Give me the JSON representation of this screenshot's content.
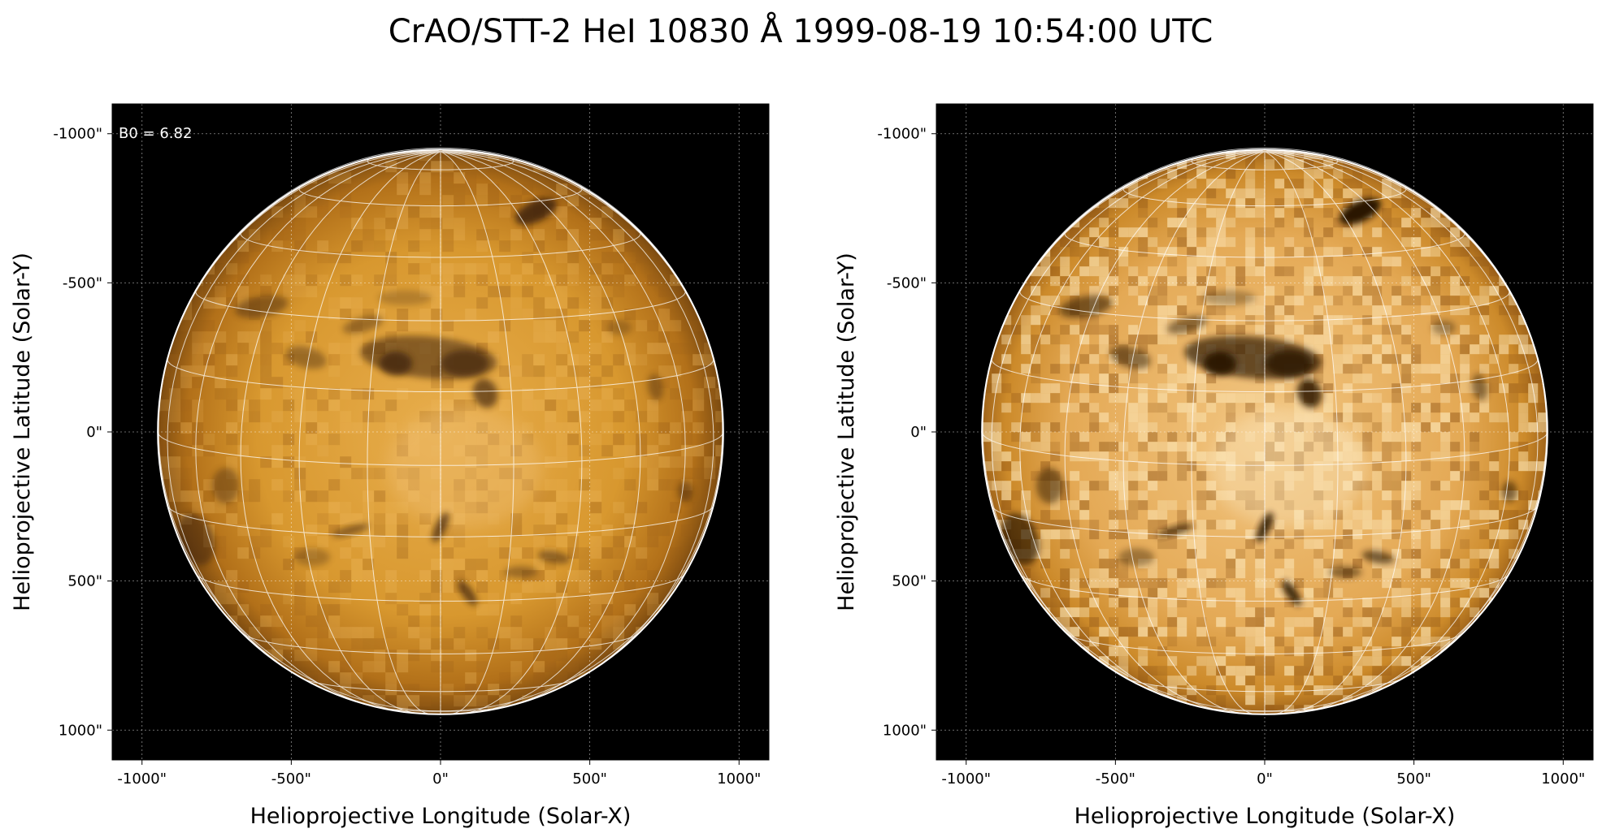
{
  "figure": {
    "title": "CrAO/STT-2 HeI 10830 Å 1999-08-19 10:54:00 UTC"
  },
  "colors": {
    "background": "#000000",
    "disk_light": "#e3a43e",
    "disk_dark": "#6b3e0c",
    "grid_line": "#ffffff",
    "limb": "#ffffff"
  },
  "panels": [
    {
      "name": "left",
      "annotation": "B0 = 6.82",
      "xlabel": "Helioprojective Longitude (Solar-X)",
      "ylabel": "Helioprojective Latitude (Solar-Y)",
      "x_ticks": [
        "-1000\"",
        "-500\"",
        "0\"",
        "500\"",
        "1000\""
      ],
      "y_ticks": [
        "1000\"",
        "500\"",
        "0\"",
        "-500\"",
        "-1000\""
      ]
    },
    {
      "name": "right",
      "annotation": "",
      "xlabel": "Helioprojective Longitude (Solar-X)",
      "ylabel": "Helioprojective Latitude (Solar-Y)",
      "x_ticks": [
        "-1000\"",
        "-500\"",
        "0\"",
        "500\"",
        "1000\""
      ],
      "y_ticks": [
        "1000\"",
        "500\"",
        "0\"",
        "-500\"",
        "-1000\""
      ]
    }
  ],
  "chart_data": [
    {
      "type": "heatmap",
      "title": "CrAO/STT-2 HeI 10830 Å 1999-08-19 10:54:00 UTC",
      "xlabel": "Helioprojective Longitude (Solar-X)",
      "ylabel": "Helioprojective Latitude (Solar-Y)",
      "xlim": [
        -1100,
        1100
      ],
      "ylim": [
        -1100,
        1100
      ],
      "x_ticks": [
        -1000,
        -500,
        0,
        500,
        1000
      ],
      "y_ticks": [
        -1000,
        -500,
        0,
        500,
        1000
      ],
      "grid": true,
      "solar_radius_arcsec": 947,
      "b0_deg": 6.82,
      "annotation": "B0 = 6.82",
      "contrast": "normal"
    },
    {
      "type": "heatmap",
      "xlabel": "Helioprojective Longitude (Solar-X)",
      "ylabel": "Helioprojective Latitude (Solar-Y)",
      "xlim": [
        -1100,
        1100
      ],
      "ylim": [
        -1100,
        1100
      ],
      "x_ticks": [
        -1000,
        -500,
        0,
        500,
        1000
      ],
      "y_ticks": [
        -1000,
        -500,
        0,
        500,
        1000
      ],
      "grid": true,
      "solar_radius_arcsec": 947,
      "b0_deg": 6.82,
      "contrast": "enhanced"
    }
  ]
}
